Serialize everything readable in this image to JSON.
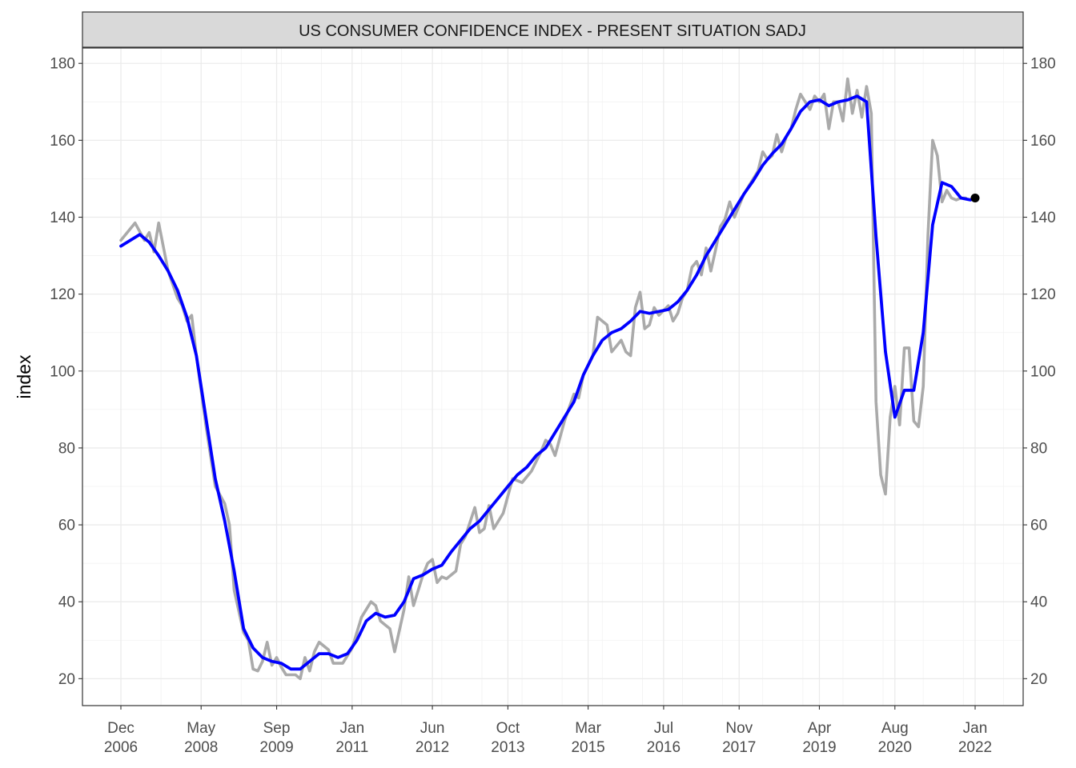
{
  "chart_data": {
    "type": "line",
    "title": "US CONSUMER CONFIDENCE INDEX - PRESENT SITUATION SADJ",
    "xlabel": "",
    "ylabel": "index",
    "ylim": [
      13,
      184
    ],
    "y_ticks": [
      20,
      40,
      60,
      80,
      100,
      120,
      140,
      160,
      180
    ],
    "y_axis_sides": [
      "left",
      "right"
    ],
    "grid": true,
    "legend": "none",
    "x_ticks": [
      {
        "date": "2006-12",
        "line1": "Dec",
        "line2": "2006"
      },
      {
        "date": "2008-05",
        "line1": "May",
        "line2": "2008"
      },
      {
        "date": "2009-09",
        "line1": "Sep",
        "line2": "2009"
      },
      {
        "date": "2011-01",
        "line1": "Jan",
        "line2": "2011"
      },
      {
        "date": "2012-06",
        "line1": "Jun",
        "line2": "2012"
      },
      {
        "date": "2013-10",
        "line1": "Oct",
        "line2": "2013"
      },
      {
        "date": "2015-03",
        "line1": "Mar",
        "line2": "2015"
      },
      {
        "date": "2016-07",
        "line1": "Jul",
        "line2": "2016"
      },
      {
        "date": "2017-11",
        "line1": "Nov",
        "line2": "2017"
      },
      {
        "date": "2019-04",
        "line1": "Apr",
        "line2": "2019"
      },
      {
        "date": "2020-08",
        "line1": "Aug",
        "line2": "2020"
      },
      {
        "date": "2022-01",
        "line1": "Jan",
        "line2": "2022"
      }
    ],
    "series": [
      {
        "color": "#aaaaaa",
        "points": [
          [
            "2006-12",
            134
          ],
          [
            "2007-03",
            138.5
          ],
          [
            "2007-05",
            134
          ],
          [
            "2007-06",
            136
          ],
          [
            "2007-07",
            131
          ],
          [
            "2007-08",
            138.5
          ],
          [
            "2007-10",
            126
          ],
          [
            "2007-12",
            119
          ],
          [
            "2008-01",
            117
          ],
          [
            "2008-02",
            113
          ],
          [
            "2008-03",
            114.5
          ],
          [
            "2008-04",
            104
          ],
          [
            "2008-06",
            86
          ],
          [
            "2008-08",
            70
          ],
          [
            "2008-10",
            65.5
          ],
          [
            "2008-11",
            60
          ],
          [
            "2008-12",
            43
          ],
          [
            "2009-02",
            32
          ],
          [
            "2009-03",
            30
          ],
          [
            "2009-04",
            22.5
          ],
          [
            "2009-05",
            22
          ],
          [
            "2009-06",
            24.5
          ],
          [
            "2009-07",
            29.5
          ],
          [
            "2009-08",
            23.5
          ],
          [
            "2009-09",
            25.5
          ],
          [
            "2009-10",
            23
          ],
          [
            "2009-11",
            21
          ],
          [
            "2009-12",
            21
          ],
          [
            "2010-01",
            21
          ],
          [
            "2010-02",
            20
          ],
          [
            "2010-03",
            25.5
          ],
          [
            "2010-04",
            22
          ],
          [
            "2010-05",
            27
          ],
          [
            "2010-06",
            29.5
          ],
          [
            "2010-08",
            27.5
          ],
          [
            "2010-09",
            24
          ],
          [
            "2010-11",
            24
          ],
          [
            "2011-01",
            28
          ],
          [
            "2011-03",
            36
          ],
          [
            "2011-05",
            40
          ],
          [
            "2011-06",
            39
          ],
          [
            "2011-07",
            35
          ],
          [
            "2011-08",
            34
          ],
          [
            "2011-09",
            33
          ],
          [
            "2011-10",
            27
          ],
          [
            "2011-12",
            38
          ],
          [
            "2012-01",
            46.5
          ],
          [
            "2012-02",
            39
          ],
          [
            "2012-04",
            47
          ],
          [
            "2012-05",
            50
          ],
          [
            "2012-06",
            51
          ],
          [
            "2012-07",
            45
          ],
          [
            "2012-08",
            46.5
          ],
          [
            "2012-09",
            46
          ],
          [
            "2012-11",
            48
          ],
          [
            "2012-12",
            55
          ],
          [
            "2013-01",
            57
          ],
          [
            "2013-03",
            64.5
          ],
          [
            "2013-04",
            58
          ],
          [
            "2013-05",
            59
          ],
          [
            "2013-06",
            65
          ],
          [
            "2013-07",
            59
          ],
          [
            "2013-09",
            63
          ],
          [
            "2013-11",
            72
          ],
          [
            "2014-01",
            71
          ],
          [
            "2014-03",
            74
          ],
          [
            "2014-05",
            79
          ],
          [
            "2014-06",
            82
          ],
          [
            "2014-07",
            81
          ],
          [
            "2014-08",
            78
          ],
          [
            "2014-10",
            87
          ],
          [
            "2014-12",
            94
          ],
          [
            "2015-01",
            93
          ],
          [
            "2015-02",
            99
          ],
          [
            "2015-04",
            104
          ],
          [
            "2015-05",
            114
          ],
          [
            "2015-07",
            112
          ],
          [
            "2015-08",
            105
          ],
          [
            "2015-10",
            108
          ],
          [
            "2015-11",
            105
          ],
          [
            "2015-12",
            104
          ],
          [
            "2016-01",
            116.5
          ],
          [
            "2016-02",
            120.5
          ],
          [
            "2016-03",
            111
          ],
          [
            "2016-04",
            112
          ],
          [
            "2016-05",
            116.5
          ],
          [
            "2016-06",
            114.5
          ],
          [
            "2016-08",
            117
          ],
          [
            "2016-09",
            113
          ],
          [
            "2016-10",
            115
          ],
          [
            "2016-11",
            119
          ],
          [
            "2016-12",
            121
          ],
          [
            "2017-01",
            127
          ],
          [
            "2017-02",
            128.5
          ],
          [
            "2017-03",
            125
          ],
          [
            "2017-04",
            132
          ],
          [
            "2017-05",
            126
          ],
          [
            "2017-06",
            131.5
          ],
          [
            "2017-07",
            137.5
          ],
          [
            "2017-08",
            139.5
          ],
          [
            "2017-09",
            144
          ],
          [
            "2017-10",
            140
          ],
          [
            "2017-12",
            146
          ],
          [
            "2018-01",
            148
          ],
          [
            "2018-02",
            150
          ],
          [
            "2018-03",
            152
          ],
          [
            "2018-04",
            157
          ],
          [
            "2018-05",
            155
          ],
          [
            "2018-06",
            156
          ],
          [
            "2018-07",
            161.5
          ],
          [
            "2018-08",
            157
          ],
          [
            "2018-09",
            161
          ],
          [
            "2018-10",
            163
          ],
          [
            "2018-11",
            168
          ],
          [
            "2018-12",
            172
          ],
          [
            "2019-01",
            170
          ],
          [
            "2019-02",
            168
          ],
          [
            "2019-03",
            171.5
          ],
          [
            "2019-04",
            170
          ],
          [
            "2019-05",
            172
          ],
          [
            "2019-06",
            163
          ],
          [
            "2019-07",
            170
          ],
          [
            "2019-08",
            170
          ],
          [
            "2019-09",
            165
          ],
          [
            "2019-10",
            176
          ],
          [
            "2019-11",
            167
          ],
          [
            "2019-12",
            173
          ],
          [
            "2020-01",
            166
          ],
          [
            "2020-02",
            174
          ],
          [
            "2020-03",
            167
          ],
          [
            "2020-04",
            92
          ],
          [
            "2020-05",
            73
          ],
          [
            "2020-06",
            68
          ],
          [
            "2020-07",
            88
          ],
          [
            "2020-08",
            96
          ],
          [
            "2020-09",
            86
          ],
          [
            "2020-10",
            106
          ],
          [
            "2020-11",
            106
          ],
          [
            "2020-12",
            87
          ],
          [
            "2021-01",
            85.5
          ],
          [
            "2021-02",
            96
          ],
          [
            "2021-03",
            135
          ],
          [
            "2021-04",
            160
          ],
          [
            "2021-05",
            156
          ],
          [
            "2021-06",
            144
          ],
          [
            "2021-07",
            147
          ],
          [
            "2021-08",
            145
          ],
          [
            "2021-09",
            144.5
          ],
          [
            "2021-10",
            145
          ],
          [
            "2021-11",
            145
          ]
        ]
      },
      {
        "color": "#0000ff",
        "points": [
          [
            "2006-12",
            132.5
          ],
          [
            "2007-02",
            134
          ],
          [
            "2007-04",
            135.5
          ],
          [
            "2007-06",
            133.5
          ],
          [
            "2007-08",
            130
          ],
          [
            "2007-10",
            126
          ],
          [
            "2007-12",
            121
          ],
          [
            "2008-02",
            114
          ],
          [
            "2008-04",
            104
          ],
          [
            "2008-06",
            88
          ],
          [
            "2008-08",
            72
          ],
          [
            "2008-10",
            61
          ],
          [
            "2008-12",
            48
          ],
          [
            "2009-02",
            33
          ],
          [
            "2009-04",
            28
          ],
          [
            "2009-06",
            25.5
          ],
          [
            "2009-08",
            24.5
          ],
          [
            "2009-10",
            24
          ],
          [
            "2009-12",
            22.5
          ],
          [
            "2010-02",
            22.5
          ],
          [
            "2010-04",
            24.5
          ],
          [
            "2010-06",
            26.5
          ],
          [
            "2010-08",
            26.5
          ],
          [
            "2010-10",
            25.5
          ],
          [
            "2010-12",
            26.5
          ],
          [
            "2011-02",
            30
          ],
          [
            "2011-04",
            35
          ],
          [
            "2011-06",
            37
          ],
          [
            "2011-08",
            36
          ],
          [
            "2011-10",
            36.5
          ],
          [
            "2011-12",
            40
          ],
          [
            "2012-02",
            46
          ],
          [
            "2012-04",
            47
          ],
          [
            "2012-06",
            48.5
          ],
          [
            "2012-08",
            49.5
          ],
          [
            "2012-10",
            53
          ],
          [
            "2012-12",
            56
          ],
          [
            "2013-02",
            59
          ],
          [
            "2013-04",
            61
          ],
          [
            "2013-06",
            64
          ],
          [
            "2013-08",
            67
          ],
          [
            "2013-10",
            70
          ],
          [
            "2013-12",
            73
          ],
          [
            "2014-02",
            75
          ],
          [
            "2014-04",
            78
          ],
          [
            "2014-06",
            80
          ],
          [
            "2014-08",
            84
          ],
          [
            "2014-10",
            88
          ],
          [
            "2014-12",
            92
          ],
          [
            "2015-02",
            99
          ],
          [
            "2015-04",
            104
          ],
          [
            "2015-06",
            108
          ],
          [
            "2015-08",
            110
          ],
          [
            "2015-10",
            111
          ],
          [
            "2015-12",
            113
          ],
          [
            "2016-02",
            115.5
          ],
          [
            "2016-04",
            115
          ],
          [
            "2016-06",
            115.5
          ],
          [
            "2016-08",
            116
          ],
          [
            "2016-10",
            118
          ],
          [
            "2016-12",
            121
          ],
          [
            "2017-02",
            125
          ],
          [
            "2017-04",
            130
          ],
          [
            "2017-06",
            134
          ],
          [
            "2017-08",
            138
          ],
          [
            "2017-10",
            142
          ],
          [
            "2017-12",
            146
          ],
          [
            "2018-02",
            149.5
          ],
          [
            "2018-04",
            153.5
          ],
          [
            "2018-06",
            156.5
          ],
          [
            "2018-08",
            159
          ],
          [
            "2018-10",
            163
          ],
          [
            "2018-12",
            167.5
          ],
          [
            "2019-02",
            170
          ],
          [
            "2019-04",
            170.5
          ],
          [
            "2019-06",
            169
          ],
          [
            "2019-08",
            170
          ],
          [
            "2019-10",
            170.5
          ],
          [
            "2019-12",
            171.5
          ],
          [
            "2020-02",
            170
          ],
          [
            "2020-04",
            135
          ],
          [
            "2020-06",
            105
          ],
          [
            "2020-08",
            88
          ],
          [
            "2020-10",
            95
          ],
          [
            "2020-12",
            95
          ],
          [
            "2021-02",
            110
          ],
          [
            "2021-04",
            138
          ],
          [
            "2021-06",
            149
          ],
          [
            "2021-08",
            148
          ],
          [
            "2021-10",
            145
          ],
          [
            "2021-12",
            144.5
          ],
          [
            "2022-01",
            145
          ]
        ]
      }
    ],
    "last_point": {
      "date": "2022-01",
      "value": 145,
      "color": "#000000"
    }
  }
}
